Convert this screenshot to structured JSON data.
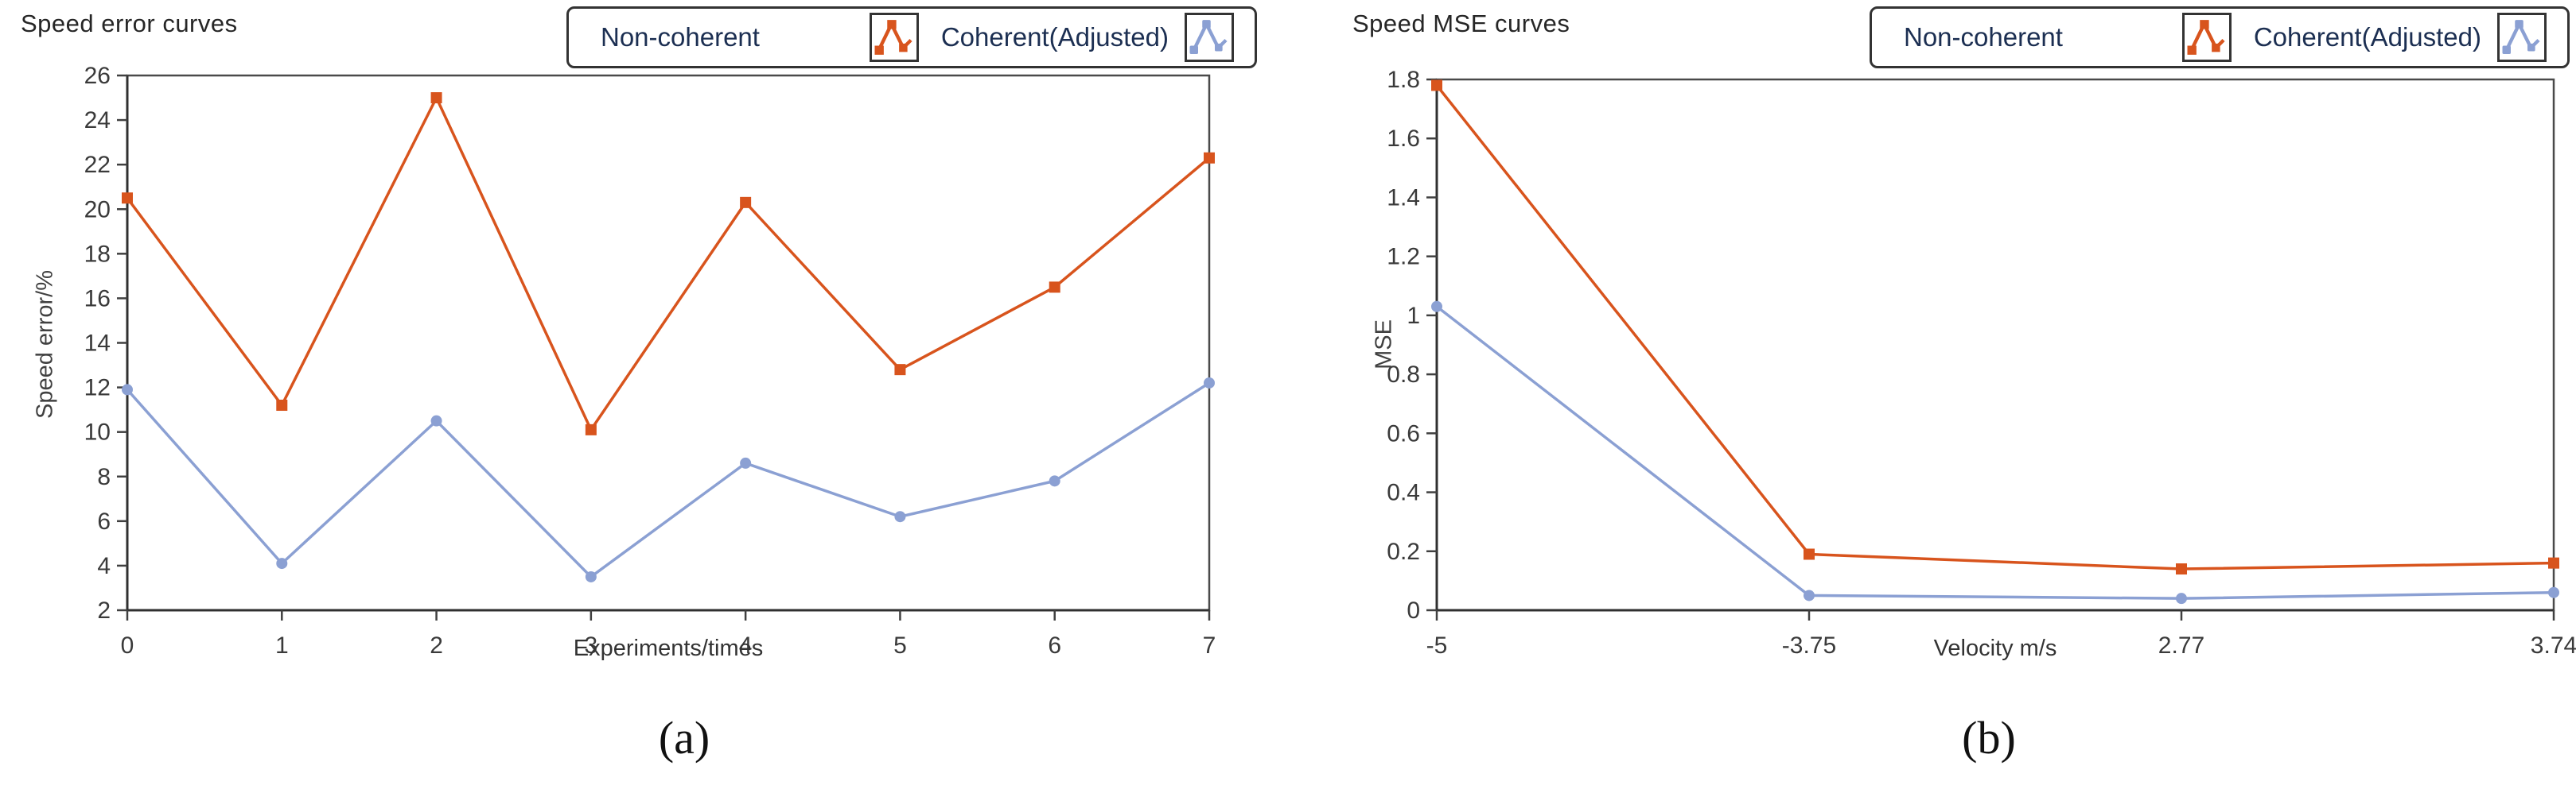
{
  "colors": {
    "non_coherent": "#D8541D",
    "coherent_adjusted": "#8BA0D3",
    "axis": "#404040",
    "tick_label": "#3A3A3A",
    "title": "#262626",
    "legend_text": "#1C2F52",
    "legend_border": "#333333"
  },
  "legend": {
    "items": [
      {
        "label": "Non-coherent",
        "icon": "non-coherent-zigzag-icon"
      },
      {
        "label": "Coherent(Adjusted)",
        "icon": "coherent-adjusted-zigzag-icon"
      }
    ]
  },
  "chart_data": [
    {
      "type": "line",
      "title": "Speed error curves",
      "caption": "(a)",
      "xlabel": "Experiments/times",
      "ylabel": "Speed error/%",
      "categories": [
        "0",
        "1",
        "2",
        "3",
        "4",
        "5",
        "6",
        "7"
      ],
      "ylim": [
        2,
        26
      ],
      "yticks": [
        "2",
        "4",
        "6",
        "8",
        "10",
        "12",
        "14",
        "16",
        "18",
        "20",
        "22",
        "24",
        "26"
      ],
      "grid": false,
      "legend_position": "top-right",
      "series": [
        {
          "name": "Non-coherent",
          "color_key": "non_coherent",
          "marker": "square",
          "values": [
            20.5,
            11.2,
            25.0,
            10.1,
            20.3,
            12.8,
            16.5,
            22.3
          ]
        },
        {
          "name": "Coherent(Adjusted)",
          "color_key": "coherent_adjusted",
          "marker": "circle",
          "values": [
            11.9,
            4.1,
            10.5,
            3.5,
            8.6,
            6.2,
            7.8,
            12.2
          ]
        }
      ]
    },
    {
      "type": "line",
      "title": "Speed MSE curves",
      "caption": "(b)",
      "xlabel": "Velocity m/s",
      "ylabel": "MSE",
      "categories": [
        "-5",
        "-3.75",
        "2.77",
        "3.74"
      ],
      "ylim": [
        0,
        1.8
      ],
      "yticks": [
        "0",
        "0.2",
        "0.4",
        "0.6",
        "0.8",
        "1",
        "1.2",
        "1.4",
        "1.6",
        "1.8"
      ],
      "grid": false,
      "legend_position": "top-right",
      "series": [
        {
          "name": "Non-coherent",
          "color_key": "non_coherent",
          "marker": "square",
          "values": [
            1.78,
            0.19,
            0.14,
            0.16
          ]
        },
        {
          "name": "Coherent(Adjusted)",
          "color_key": "coherent_adjusted",
          "marker": "circle",
          "values": [
            1.03,
            0.05,
            0.04,
            0.06
          ]
        }
      ]
    }
  ]
}
